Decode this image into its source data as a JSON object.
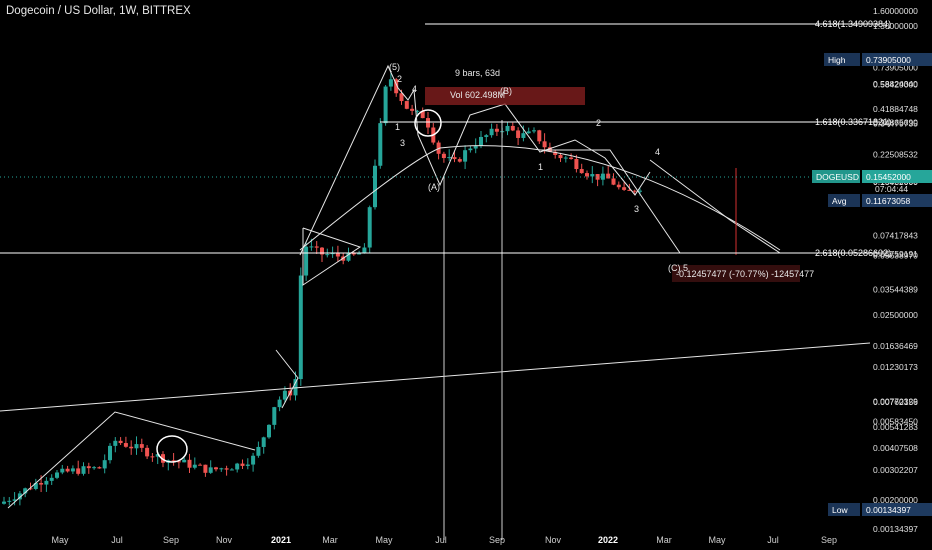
{
  "header": {
    "title": "Dogecoin / US Dollar, 1W, BITTREX"
  },
  "chart_data": {
    "type": "candlestick",
    "symbol": "DOGEUSD",
    "interval": "1W",
    "exchange": "BITTREX",
    "y_scale": "log",
    "y_axis_labels": [
      "1.60000000",
      "1.30000000",
      "0.73905000",
      "0.58824340",
      "0.58429000",
      "0.41884748",
      "0.34865690",
      "0.34479735",
      "0.22508532",
      "0.16302356",
      "0.15529000",
      "0.15452000",
      "0.11673058",
      "0.07417843",
      "0.05759191",
      "0.05638970",
      "0.03544389",
      "0.02500000",
      "0.01636469",
      "0.01230173",
      "0.00770329",
      "0.00762156",
      "0.00583450",
      "0.00541283",
      "0.00407508",
      "0.00302207",
      "0.00200000",
      "0.00134397"
    ],
    "price_badges": {
      "high": {
        "label": "High",
        "value": "0.73905000"
      },
      "current": {
        "label": "DOGEUSD",
        "value": "0.15452000",
        "countdown": "07:04:44"
      },
      "avg": {
        "label": "Avg",
        "value": "0.11673058"
      },
      "low": {
        "label": "Low",
        "value": "0.00134397"
      }
    },
    "x_labels": [
      {
        "text": "May",
        "bold": false
      },
      {
        "text": "Jul",
        "bold": false
      },
      {
        "text": "Sep",
        "bold": false
      },
      {
        "text": "Nov",
        "bold": false
      },
      {
        "text": "2021",
        "bold": true
      },
      {
        "text": "Mar",
        "bold": false
      },
      {
        "text": "May",
        "bold": false
      },
      {
        "text": "Jul",
        "bold": false
      },
      {
        "text": "Sep",
        "bold": false
      },
      {
        "text": "Nov",
        "bold": false
      },
      {
        "text": "2022",
        "bold": true
      },
      {
        "text": "Mar",
        "bold": false
      },
      {
        "text": "May",
        "bold": false
      },
      {
        "text": "Jul",
        "bold": false
      },
      {
        "text": "Sep",
        "bold": false
      }
    ],
    "fib_levels": [
      {
        "label": "4.618(1.34909384)",
        "value": 1.34909384
      },
      {
        "label": "1.618(0.33671321)",
        "value": 0.33671321
      },
      {
        "label": "2.618(0.05286602)",
        "value": 0.05286602
      }
    ],
    "annotations": {
      "bars_range": "9 bars, 63d",
      "volume": "Vol 602.498M",
      "measure": "-0.12457477 (-70.77%) -12457477",
      "wave_labels": [
        "(5)",
        "2",
        "4",
        "1",
        "3",
        "(A)",
        "(B)",
        "1",
        "2",
        "3",
        "4",
        "(C)",
        "5"
      ]
    },
    "colors": {
      "up": "#26a69a",
      "down": "#ef5350",
      "current_price": "#26a69a"
    },
    "grid": false
  }
}
